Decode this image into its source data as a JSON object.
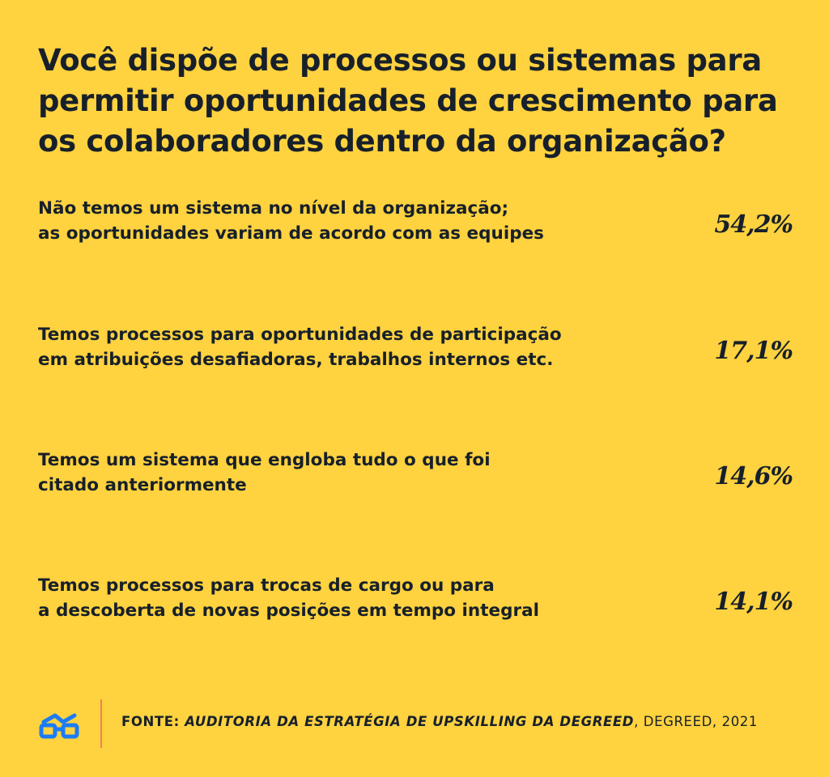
{
  "chart_data": {
    "type": "bar",
    "title_lines": [
      "Você dispõe de processos ou sistemas para",
      "permitir oportunidades de crescimento para",
      "os colaboradores dentro da organização?"
    ],
    "categories": [
      [
        "Não temos um sistema no nível da organização;",
        "as oportunidades variam de acordo com as equipes"
      ],
      [
        "Temos processos para oportunidades de participação",
        "em atribuições desafiadoras, trabalhos internos etc."
      ],
      [
        "Temos um sistema que engloba tudo o que foi",
        "citado anteriormente"
      ],
      [
        "Temos processos para trocas de cargo ou para",
        "a descoberta de novas posições em tempo integral"
      ]
    ],
    "values": [
      54.2,
      17.1,
      14.6,
      14.1
    ],
    "value_labels": [
      "54,2%",
      "17,1%",
      "14,6%",
      "14,1%"
    ],
    "xlim": [
      0,
      100
    ],
    "colors": {
      "background": "#FFD23F",
      "fill": "#FF7E62",
      "outline": "#FF7E62",
      "chevron": "#FF9C6E",
      "text": "#17202A"
    }
  },
  "footer": {
    "source_prefix": "FONTE: ",
    "source_title": "AUDITORIA DA ESTRATÉGIA DE UPSKILLING DA DEGREED",
    "source_suffix": ", DEGREED, 2021",
    "logo_icon": "degreed-glasses-icon",
    "logo_color": "#1C7CF4"
  }
}
